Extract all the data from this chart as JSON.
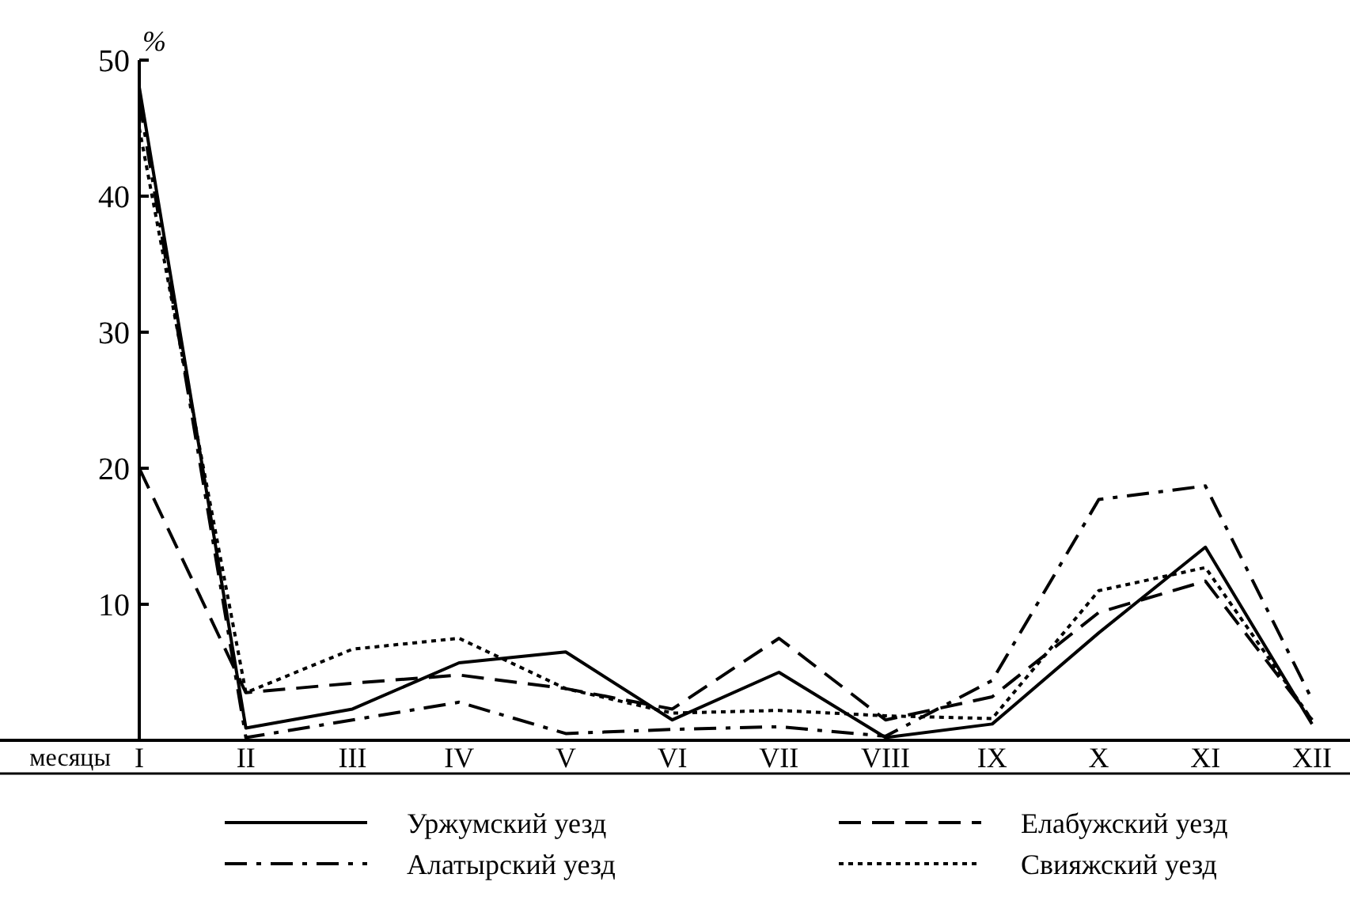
{
  "chart_data": {
    "type": "line",
    "xlabel": "месяцы",
    "ylabel": "%",
    "categories": [
      "I",
      "II",
      "III",
      "IV",
      "V",
      "VI",
      "VII",
      "VIII",
      "IX",
      "X",
      "XI",
      "XII"
    ],
    "ylim": [
      0,
      50
    ],
    "yticks": [
      10,
      20,
      30,
      40,
      50
    ],
    "legend": "bottom",
    "grid": false,
    "series": [
      {
        "name": "Уржумский уезд",
        "color": "#000000",
        "line_style": "solid",
        "values": [
          48,
          0.9,
          2.3,
          5.7,
          6.5,
          1.5,
          5,
          0.2,
          1.2,
          7.9,
          14.2,
          1.2
        ]
      },
      {
        "name": "Елабужский уезд",
        "color": "#000000",
        "line_style": "dashed",
        "values": [
          20,
          3.5,
          4.2,
          4.8,
          3.8,
          2.3,
          7.5,
          1.5,
          3.2,
          9.4,
          11.7,
          1.5
        ]
      },
      {
        "name": "Алатырский уезд",
        "color": "#000000",
        "line_style": "dashdot",
        "values": [
          47,
          0.2,
          1.5,
          2.8,
          0.5,
          0.8,
          1,
          0.3,
          4.4,
          17.7,
          18.7,
          3
        ]
      },
      {
        "name": "Свияжский уезд",
        "color": "#000000",
        "line_style": "dotted",
        "values": [
          45,
          3.5,
          6.7,
          7.5,
          3.8,
          2,
          2.2,
          1.8,
          1.6,
          11,
          12.7,
          1.5
        ]
      }
    ]
  }
}
